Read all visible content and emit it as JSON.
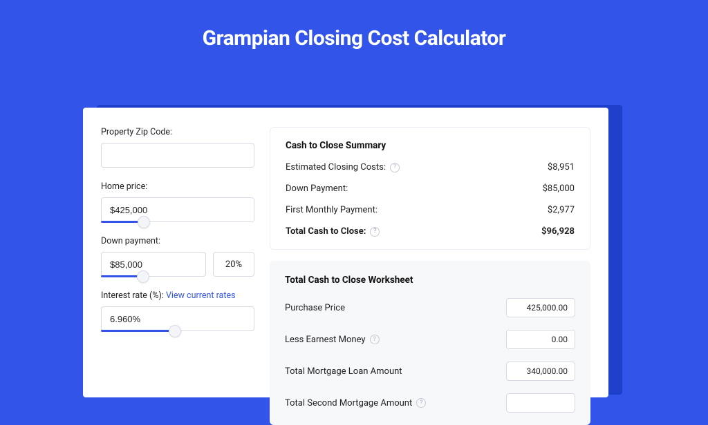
{
  "colors": {
    "page_bg": "#3354e8",
    "card_bg": "#ffffff",
    "card_shadow": "#1e3fca",
    "worksheet_bg": "#f7f8fa",
    "border": "#d6d9e0",
    "text": "#222222",
    "title": "#ffffff",
    "link": "#3354e8",
    "slider_track": "#3354e8",
    "help_border": "#c7cbd6"
  },
  "title": "Grampian Closing Cost Calculator",
  "inputs": {
    "zip_label": "Property Zip Code:",
    "zip_value": "",
    "home_price_label": "Home price:",
    "home_price_value": "$425,000",
    "home_price_slider_pct": 28,
    "down_payment_label": "Down payment:",
    "down_payment_value": "$85,000",
    "down_payment_pct": "20%",
    "down_payment_slider_pct": 40,
    "rate_label": "Interest rate (%): ",
    "rate_link": "View current rates",
    "rate_value": "6.960%",
    "rate_slider_pct": 48
  },
  "summary": {
    "title": "Cash to Close Summary",
    "rows": [
      {
        "label": "Estimated Closing Costs:",
        "value": "$8,951",
        "help": true,
        "bold": false
      },
      {
        "label": "Down Payment:",
        "value": "$85,000",
        "help": false,
        "bold": false
      },
      {
        "label": "First Monthly Payment:",
        "value": "$2,977",
        "help": false,
        "bold": false
      },
      {
        "label": "Total Cash to Close:",
        "value": "$96,928",
        "help": true,
        "bold": true
      }
    ]
  },
  "worksheet": {
    "title": "Total Cash to Close Worksheet",
    "rows": [
      {
        "label": "Purchase Price",
        "value": "425,000.00",
        "help": false
      },
      {
        "label": "Less Earnest Money",
        "value": "0.00",
        "help": true
      },
      {
        "label": "Total Mortgage Loan Amount",
        "value": "340,000.00",
        "help": false
      },
      {
        "label": "Total Second Mortgage Amount",
        "value": "",
        "help": true
      }
    ]
  }
}
